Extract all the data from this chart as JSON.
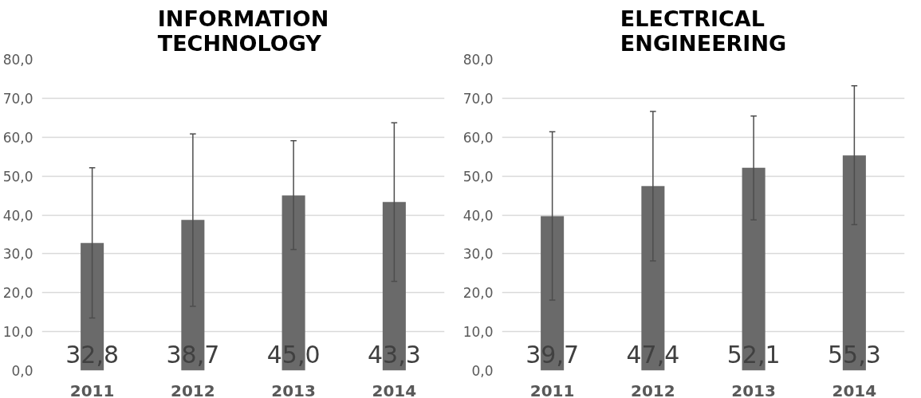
{
  "chart_data": [
    {
      "type": "bar",
      "title": "INFORMATION TECHNOLOGY",
      "categories": [
        "2011",
        "2012",
        "2013",
        "2014"
      ],
      "values": [
        32.8,
        38.7,
        45.0,
        43.3
      ],
      "color": "#6a6a6a",
      "errors": [
        [
          13.5,
          52.1
        ],
        [
          16.5,
          60.8
        ],
        [
          31.1,
          59.1
        ],
        [
          22.9,
          63.7
        ]
      ],
      "value_labels": [
        "32,8",
        "38,7",
        "45,0",
        "43,3"
      ],
      "ylim": [
        0,
        80
      ],
      "yticks": [
        {
          "value": 0,
          "label": "0,0"
        },
        {
          "value": 10,
          "label": "10,0"
        },
        {
          "value": 20,
          "label": "20,0"
        },
        {
          "value": 30,
          "label": "30,0"
        },
        {
          "value": 40,
          "label": "40,0"
        },
        {
          "value": 50,
          "label": "50,0"
        },
        {
          "value": 60,
          "label": "60,0"
        },
        {
          "value": 70,
          "label": "70,0"
        },
        {
          "value": 80,
          "label": "80,0"
        }
      ],
      "grid": "y"
    },
    {
      "type": "bar",
      "title": "ELECTRICAL ENGINEERING",
      "categories": [
        "2011",
        "2012",
        "2013",
        "2014"
      ],
      "values": [
        39.7,
        47.4,
        52.1,
        55.3
      ],
      "color": "#6a6a6a",
      "errors": [
        [
          18.1,
          61.4
        ],
        [
          28.2,
          66.6
        ],
        [
          38.7,
          65.4
        ],
        [
          37.5,
          73.2
        ]
      ],
      "value_labels": [
        "39,7",
        "47,4",
        "52,1",
        "55,3"
      ],
      "ylim": [
        0,
        80
      ],
      "yticks": [
        {
          "value": 0,
          "label": "0,0"
        },
        {
          "value": 10,
          "label": "10,0"
        },
        {
          "value": 20,
          "label": "20,0"
        },
        {
          "value": 30,
          "label": "30,0"
        },
        {
          "value": 40,
          "label": "40,0"
        },
        {
          "value": 50,
          "label": "50,0"
        },
        {
          "value": 60,
          "label": "60,0"
        },
        {
          "value": 70,
          "label": "70,0"
        },
        {
          "value": 80,
          "label": "80,0"
        }
      ],
      "grid": "y"
    }
  ]
}
